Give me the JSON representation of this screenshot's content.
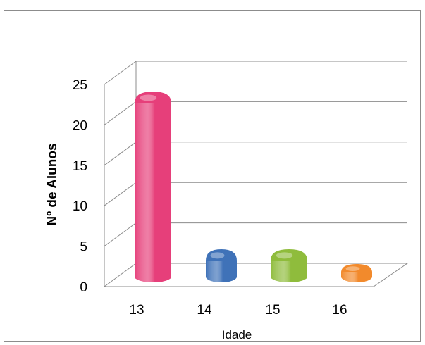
{
  "chart_data": {
    "type": "bar",
    "style": "3d-cylinder",
    "categories": [
      "13",
      "14",
      "15",
      "16"
    ],
    "values": [
      21.5,
      2,
      2,
      0.5
    ],
    "colors": [
      "#e63f7a",
      "#3f72b8",
      "#8fbc3c",
      "#f28a2c"
    ],
    "xlabel": "Idade",
    "ylabel": "Nº de Alunos",
    "ylim": [
      0,
      25
    ],
    "yticks": [
      "0",
      "5",
      "10",
      "15",
      "20",
      "25"
    ],
    "grid": true,
    "legend": "none"
  }
}
